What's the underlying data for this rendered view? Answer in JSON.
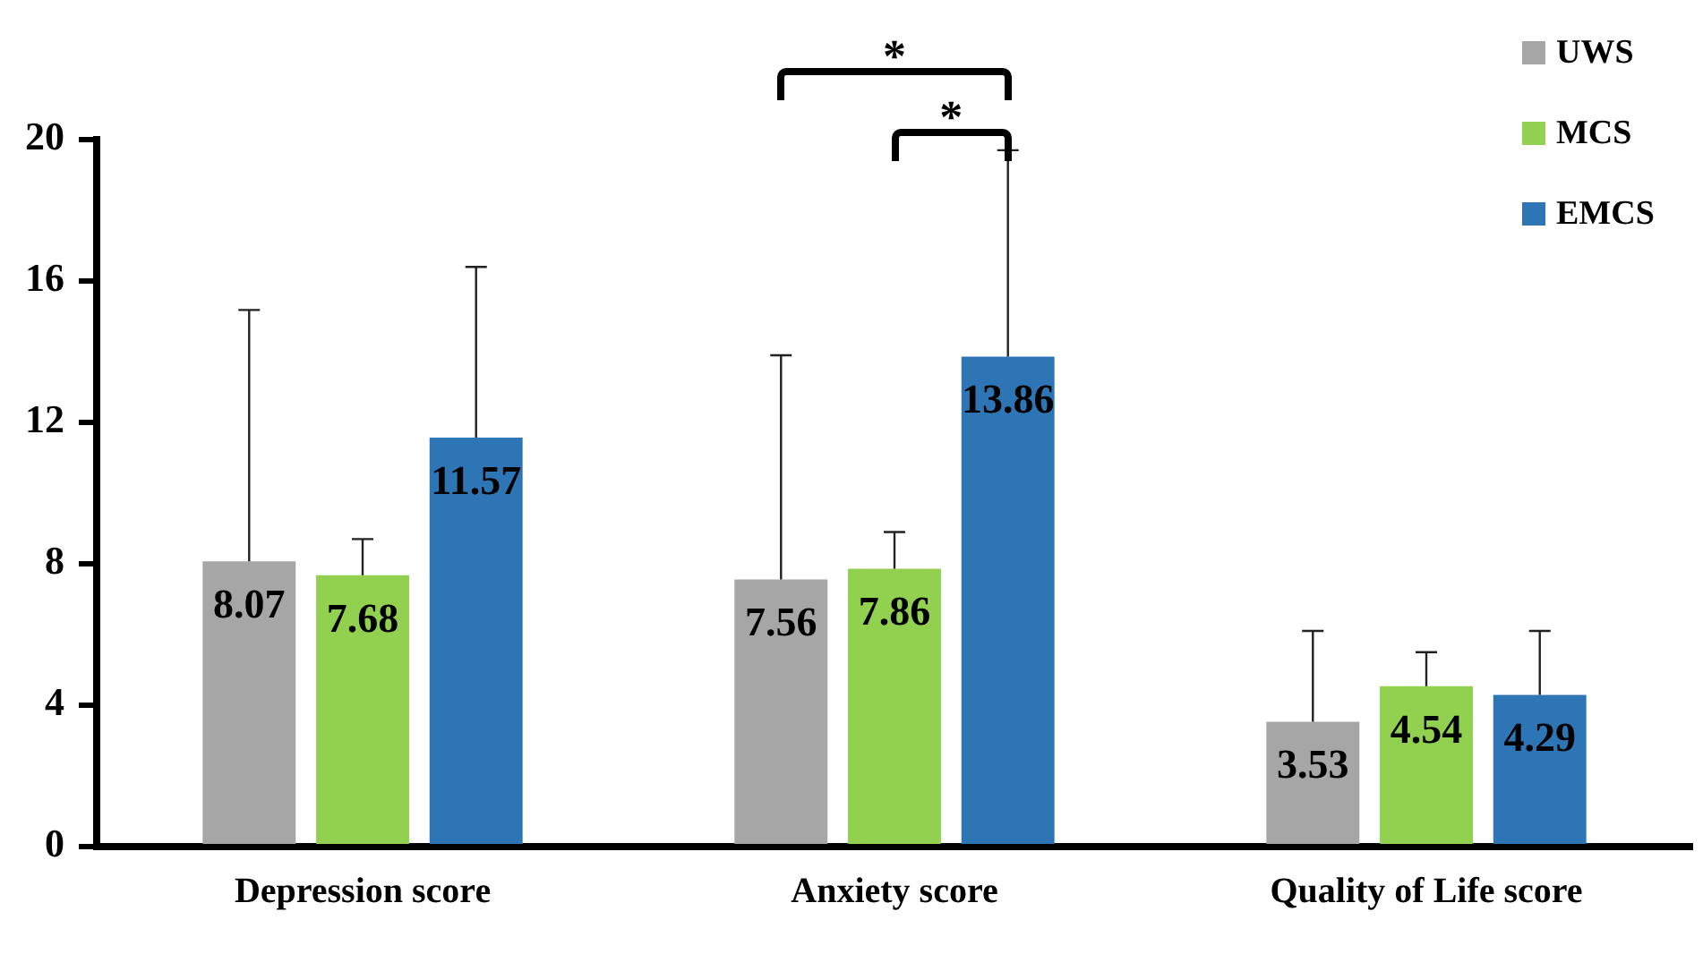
{
  "chart_data": {
    "type": "bar",
    "categories": [
      "Depression score",
      "Anxiety score",
      "Quality of Life score"
    ],
    "series": [
      {
        "name": "UWS",
        "color": "#a6a6a6",
        "values": [
          8.07,
          7.56,
          3.53
        ],
        "errors": [
          [
            8.07,
            15.18
          ],
          [
            7.56,
            13.9
          ],
          [
            3.53,
            6.1
          ]
        ]
      },
      {
        "name": "MCS",
        "color": "#92d050",
        "values": [
          7.68,
          7.86,
          4.54
        ],
        "errors": [
          [
            7.68,
            8.7
          ],
          [
            7.86,
            8.9
          ],
          [
            4.54,
            5.5
          ]
        ]
      },
      {
        "name": "EMCS",
        "color": "#2e75b6",
        "values": [
          11.57,
          13.86,
          4.29
        ],
        "errors": [
          [
            11.57,
            16.4
          ],
          [
            13.86,
            19.7
          ],
          [
            4.29,
            6.1
          ]
        ]
      }
    ],
    "ylim": [
      0,
      20
    ],
    "yticks": [
      0,
      4,
      8,
      12,
      16,
      20
    ],
    "grid": false,
    "legend": "top right",
    "data_labels": true,
    "annotations": [
      "*",
      "*"
    ]
  }
}
